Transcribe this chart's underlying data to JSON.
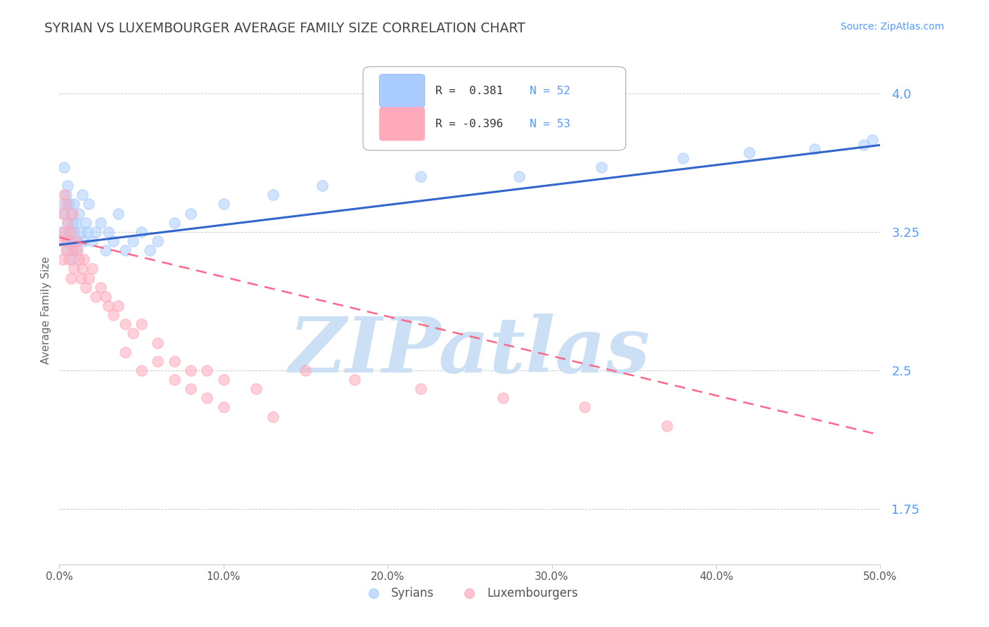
{
  "title": "SYRIAN VS LUXEMBOURGER AVERAGE FAMILY SIZE CORRELATION CHART",
  "source_text": "Source: ZipAtlas.com",
  "ylabel": "Average Family Size",
  "xlim": [
    0.0,
    0.5
  ],
  "ylim": [
    1.45,
    4.2
  ],
  "yticks": [
    1.75,
    2.5,
    3.25,
    4.0
  ],
  "xticks": [
    0.0,
    0.1,
    0.2,
    0.3,
    0.4,
    0.5
  ],
  "xtick_labels": [
    "0.0%",
    "10.0%",
    "20.0%",
    "30.0%",
    "40.0%",
    "50.0%"
  ],
  "background_color": "#ffffff",
  "grid_color": "#cccccc",
  "title_color": "#444444",
  "axis_tick_color": "#5599ff",
  "watermark_text": "ZIPatlas",
  "watermark_color": "#cce0f5",
  "legend_r1": "R =  0.381",
  "legend_n1": "N = 52",
  "legend_r2": "R = -0.396",
  "legend_n2": "N = 53",
  "legend_box_color1": "#aaccff",
  "legend_box_color2": "#ffaabb",
  "scatter_color1": "#aaccff",
  "scatter_color2": "#ffaabb",
  "line_color1": "#3366cc",
  "line_color2": "#ff6688",
  "blue_line_x0": 0.0,
  "blue_line_y0": 3.18,
  "blue_line_x1": 0.5,
  "blue_line_y1": 3.72,
  "pink_line_x0": 0.0,
  "pink_line_y0": 3.22,
  "pink_line_x1": 0.5,
  "pink_line_y1": 2.15,
  "syrians_x": [
    0.001,
    0.002,
    0.003,
    0.003,
    0.004,
    0.004,
    0.005,
    0.005,
    0.005,
    0.006,
    0.006,
    0.007,
    0.007,
    0.008,
    0.008,
    0.009,
    0.009,
    0.01,
    0.01,
    0.011,
    0.012,
    0.013,
    0.014,
    0.015,
    0.016,
    0.017,
    0.018,
    0.02,
    0.022,
    0.025,
    0.028,
    0.03,
    0.033,
    0.036,
    0.04,
    0.045,
    0.05,
    0.055,
    0.06,
    0.07,
    0.08,
    0.1,
    0.13,
    0.16,
    0.22,
    0.28,
    0.33,
    0.38,
    0.42,
    0.46,
    0.49,
    0.495
  ],
  "syrians_y": [
    3.25,
    3.4,
    3.35,
    3.6,
    3.2,
    3.45,
    3.15,
    3.3,
    3.5,
    3.25,
    3.4,
    3.2,
    3.35,
    3.1,
    3.3,
    3.25,
    3.4,
    3.15,
    3.3,
    3.2,
    3.35,
    3.25,
    3.45,
    3.2,
    3.3,
    3.25,
    3.4,
    3.2,
    3.25,
    3.3,
    3.15,
    3.25,
    3.2,
    3.35,
    3.15,
    3.2,
    3.25,
    3.15,
    3.2,
    3.3,
    3.35,
    3.4,
    3.45,
    3.5,
    3.55,
    3.55,
    3.6,
    3.65,
    3.68,
    3.7,
    3.72,
    3.75
  ],
  "luxembourgers_x": [
    0.001,
    0.002,
    0.002,
    0.003,
    0.003,
    0.004,
    0.004,
    0.005,
    0.005,
    0.006,
    0.007,
    0.007,
    0.008,
    0.008,
    0.009,
    0.01,
    0.011,
    0.012,
    0.013,
    0.014,
    0.015,
    0.016,
    0.018,
    0.02,
    0.022,
    0.025,
    0.028,
    0.03,
    0.033,
    0.036,
    0.04,
    0.045,
    0.05,
    0.06,
    0.07,
    0.08,
    0.09,
    0.1,
    0.12,
    0.15,
    0.18,
    0.22,
    0.27,
    0.32,
    0.37,
    0.04,
    0.05,
    0.06,
    0.07,
    0.08,
    0.09,
    0.1,
    0.13
  ],
  "luxembourgers_y": [
    3.2,
    3.35,
    3.1,
    3.25,
    3.45,
    3.15,
    3.4,
    3.2,
    3.3,
    3.1,
    3.25,
    3.0,
    3.15,
    3.35,
    3.05,
    3.2,
    3.15,
    3.1,
    3.0,
    3.05,
    3.1,
    2.95,
    3.0,
    3.05,
    2.9,
    2.95,
    2.9,
    2.85,
    2.8,
    2.85,
    2.75,
    2.7,
    2.75,
    2.65,
    2.55,
    2.5,
    2.5,
    2.45,
    2.4,
    2.5,
    2.45,
    2.4,
    2.35,
    2.3,
    2.2,
    2.6,
    2.5,
    2.55,
    2.45,
    2.4,
    2.35,
    2.3,
    2.25
  ]
}
